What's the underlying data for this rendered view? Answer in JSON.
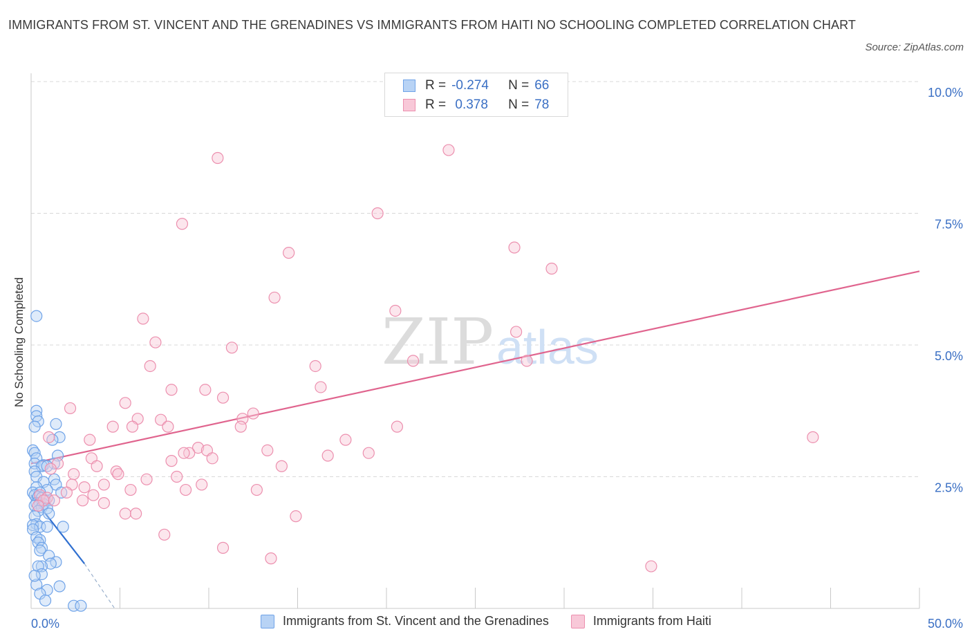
{
  "title": "IMMIGRANTS FROM ST. VINCENT AND THE GRENADINES VS IMMIGRANTS FROM HAITI NO SCHOOLING COMPLETED CORRELATION CHART",
  "source": "Source: ZipAtlas.com",
  "watermark": {
    "zip": "ZIP",
    "atlas": "atlas"
  },
  "colors": {
    "blue": "#6fa3e8",
    "blue_fill": "#b8d3f5",
    "blue_line": "#2f6fd0",
    "pink": "#ec8fae",
    "pink_fill": "#f8c8d8",
    "pink_line": "#e0648e",
    "grid": "#d8d8d8",
    "tick_text": "#3a6fc4"
  },
  "legend_top": {
    "rows": [
      {
        "r_label": "R =",
        "r_value": "-0.274",
        "n_label": "N =",
        "n_value": "66"
      },
      {
        "r_label": "R =",
        "r_value": " 0.378",
        "n_label": "N =",
        "n_value": "78"
      }
    ]
  },
  "legend_bottom": {
    "items": [
      "Immigrants from St. Vincent and the Grenadines",
      "Immigrants from Haiti"
    ]
  },
  "chart_data": {
    "type": "scatter",
    "title": "IMMIGRANTS FROM ST. VINCENT AND THE GRENADINES VS IMMIGRANTS FROM HAITI NO SCHOOLING COMPLETED CORRELATION CHART",
    "xlabel": "",
    "ylabel": "No Schooling Completed",
    "xlim": [
      0,
      50
    ],
    "ylim": [
      0,
      10
    ],
    "x_tick_labels": [
      "0.0%",
      "50.0%"
    ],
    "y_ticks": [
      2.5,
      5.0,
      7.5,
      10.0
    ],
    "y_tick_labels": [
      "2.5%",
      "5.0%",
      "7.5%",
      "10.0%"
    ],
    "grid": true,
    "legend_position": "top-center",
    "series": [
      {
        "name": "Immigrants from St. Vincent and the Grenadines",
        "color": "#6fa3e8",
        "trend": {
          "x": [
            0,
            3.0
          ],
          "y": [
            2.15,
            0.85
          ],
          "dashed_to": [
            4.7,
            0.0
          ]
        },
        "points": [
          [
            0.3,
            5.55
          ],
          [
            0.3,
            3.75
          ],
          [
            0.3,
            3.65
          ],
          [
            0.4,
            3.55
          ],
          [
            1.4,
            3.5
          ],
          [
            0.2,
            3.45
          ],
          [
            1.6,
            3.25
          ],
          [
            1.2,
            3.2
          ],
          [
            0.1,
            3.0
          ],
          [
            0.2,
            2.95
          ],
          [
            1.5,
            2.9
          ],
          [
            0.3,
            2.85
          ],
          [
            0.2,
            2.75
          ],
          [
            0.7,
            2.72
          ],
          [
            1.3,
            2.75
          ],
          [
            0.6,
            2.7
          ],
          [
            0.9,
            2.7
          ],
          [
            0.2,
            2.6
          ],
          [
            0.3,
            2.5
          ],
          [
            1.3,
            2.45
          ],
          [
            0.7,
            2.4
          ],
          [
            1.4,
            2.35
          ],
          [
            0.3,
            2.3
          ],
          [
            0.9,
            2.25
          ],
          [
            0.1,
            2.2
          ],
          [
            1.7,
            2.2
          ],
          [
            0.5,
            2.2
          ],
          [
            0.2,
            2.15
          ],
          [
            0.4,
            2.12
          ],
          [
            0.6,
            2.1
          ],
          [
            0.8,
            2.05
          ],
          [
            1.0,
            2.05
          ],
          [
            0.3,
            2.0
          ],
          [
            0.5,
            2.0
          ],
          [
            0.7,
            1.98
          ],
          [
            0.2,
            1.95
          ],
          [
            0.6,
            1.92
          ],
          [
            0.9,
            1.9
          ],
          [
            0.4,
            1.85
          ],
          [
            1.0,
            1.8
          ],
          [
            0.2,
            1.75
          ],
          [
            0.3,
            1.6
          ],
          [
            0.1,
            1.58
          ],
          [
            0.5,
            1.55
          ],
          [
            0.9,
            1.55
          ],
          [
            1.8,
            1.55
          ],
          [
            0.1,
            1.5
          ],
          [
            0.3,
            1.35
          ],
          [
            0.5,
            1.3
          ],
          [
            0.4,
            1.25
          ],
          [
            0.6,
            1.15
          ],
          [
            0.5,
            1.1
          ],
          [
            1.0,
            1.0
          ],
          [
            1.4,
            0.88
          ],
          [
            1.1,
            0.85
          ],
          [
            0.6,
            0.8
          ],
          [
            0.4,
            0.8
          ],
          [
            0.6,
            0.65
          ],
          [
            0.3,
            0.45
          ],
          [
            1.6,
            0.42
          ],
          [
            0.9,
            0.35
          ],
          [
            0.5,
            0.28
          ],
          [
            0.8,
            0.15
          ],
          [
            2.4,
            0.05
          ],
          [
            2.8,
            0.05
          ],
          [
            0.2,
            0.62
          ]
        ]
      },
      {
        "name": "Immigrants from Haiti",
        "color": "#ec8fae",
        "trend": {
          "x": [
            0,
            50
          ],
          "y": [
            2.75,
            6.4
          ]
        },
        "points": [
          [
            23.5,
            8.7
          ],
          [
            10.5,
            8.55
          ],
          [
            19.5,
            7.5
          ],
          [
            8.5,
            7.3
          ],
          [
            27.2,
            6.85
          ],
          [
            14.5,
            6.75
          ],
          [
            29.3,
            6.45
          ],
          [
            13.7,
            5.9
          ],
          [
            20.5,
            5.65
          ],
          [
            6.3,
            5.5
          ],
          [
            27.3,
            5.25
          ],
          [
            7.0,
            5.05
          ],
          [
            11.3,
            4.95
          ],
          [
            6.7,
            4.6
          ],
          [
            16.0,
            4.6
          ],
          [
            21.5,
            4.7
          ],
          [
            27.9,
            4.7
          ],
          [
            7.9,
            4.15
          ],
          [
            9.8,
            4.15
          ],
          [
            16.3,
            4.2
          ],
          [
            10.8,
            4.0
          ],
          [
            5.3,
            3.9
          ],
          [
            2.2,
            3.8
          ],
          [
            12.5,
            3.7
          ],
          [
            11.9,
            3.6
          ],
          [
            6.0,
            3.6
          ],
          [
            7.3,
            3.58
          ],
          [
            4.6,
            3.45
          ],
          [
            11.8,
            3.45
          ],
          [
            7.7,
            3.45
          ],
          [
            5.7,
            3.45
          ],
          [
            20.6,
            3.45
          ],
          [
            44.0,
            3.25
          ],
          [
            1.0,
            3.25
          ],
          [
            3.3,
            3.2
          ],
          [
            17.7,
            3.2
          ],
          [
            9.4,
            3.05
          ],
          [
            8.9,
            2.95
          ],
          [
            13.3,
            3.0
          ],
          [
            9.9,
            3.0
          ],
          [
            8.6,
            2.95
          ],
          [
            19.0,
            2.95
          ],
          [
            16.7,
            2.9
          ],
          [
            3.4,
            2.85
          ],
          [
            10.2,
            2.85
          ],
          [
            7.9,
            2.8
          ],
          [
            1.5,
            2.75
          ],
          [
            14.1,
            2.7
          ],
          [
            3.7,
            2.7
          ],
          [
            1.1,
            2.65
          ],
          [
            4.8,
            2.6
          ],
          [
            2.4,
            2.55
          ],
          [
            4.9,
            2.55
          ],
          [
            8.2,
            2.5
          ],
          [
            6.5,
            2.45
          ],
          [
            9.6,
            2.35
          ],
          [
            4.1,
            2.35
          ],
          [
            2.3,
            2.35
          ],
          [
            3.0,
            2.3
          ],
          [
            5.6,
            2.25
          ],
          [
            8.7,
            2.25
          ],
          [
            12.7,
            2.25
          ],
          [
            2.0,
            2.2
          ],
          [
            3.5,
            2.15
          ],
          [
            0.5,
            2.15
          ],
          [
            0.9,
            2.1
          ],
          [
            0.7,
            2.05
          ],
          [
            1.3,
            2.05
          ],
          [
            2.9,
            2.05
          ],
          [
            4.1,
            2.0
          ],
          [
            0.4,
            1.95
          ],
          [
            5.3,
            1.8
          ],
          [
            5.9,
            1.8
          ],
          [
            14.9,
            1.75
          ],
          [
            7.5,
            1.4
          ],
          [
            10.8,
            1.15
          ],
          [
            13.5,
            0.95
          ],
          [
            34.9,
            0.8
          ]
        ]
      }
    ]
  }
}
